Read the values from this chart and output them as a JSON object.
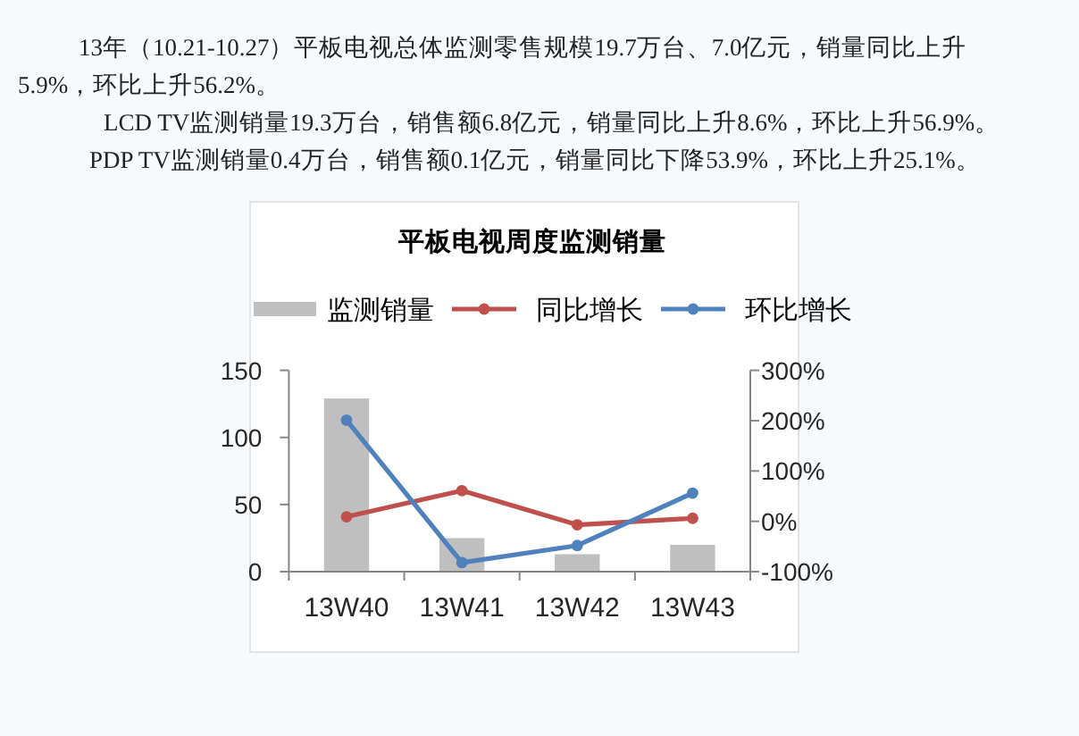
{
  "chart_data": {
    "type": "bar",
    "title": "平板电视周度监测销量",
    "annotations": [
      "13年（10.21-10.27）平板电视总体监测零售规模19.7万台、7.0亿元，销量同比上升5.9%，环比上升56.2%。",
      "LCD TV监测销量19.3万台，销售额6.8亿元，销量同比上升8.6%，环比上升56.9%。",
      "PDP TV监测销量0.4万台，销售额0.1亿元，销量同比下降53.9%，环比上升25.1%。"
    ],
    "categories": [
      "13W40",
      "13W41",
      "13W42",
      "13W43"
    ],
    "series": [
      {
        "name": "监测销量",
        "color": "#bfbfbf",
        "values": [
          129,
          25,
          13,
          20
        ]
      },
      {
        "name": "同比增长",
        "type": "line",
        "axis": "y2",
        "color": "#c0504d",
        "values": [
          9,
          61,
          -7,
          6
        ]
      },
      {
        "name": "环比增长",
        "type": "line",
        "axis": "y2",
        "color": "#4f81bd",
        "values": [
          201,
          -82,
          -48,
          56
        ]
      }
    ],
    "ylim": [
      0,
      150
    ],
    "yticks": [
      0,
      50,
      100,
      150
    ],
    "y2lim": [
      -100,
      300
    ],
    "y2ticks": [
      {
        "value": -100,
        "label": "-100%"
      },
      {
        "value": 0,
        "label": "0%"
      },
      {
        "value": 100,
        "label": "100%"
      },
      {
        "value": 200,
        "label": "200%"
      },
      {
        "value": 300,
        "label": "300%"
      }
    ],
    "legend": "top",
    "grid": false,
    "marker": "circle"
  }
}
